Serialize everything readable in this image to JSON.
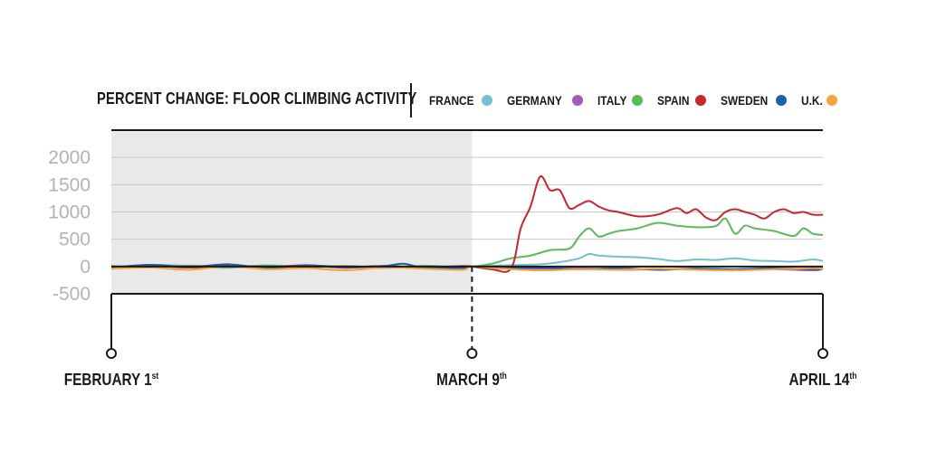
{
  "chart_data": {
    "type": "line",
    "title": "PERCENT CHANGE: FLOOR CLIMBING ACTIVITY",
    "ylim": [
      -500,
      2500
    ],
    "yticks": [
      2000,
      1500,
      1000,
      500,
      0,
      -500
    ],
    "x_range_days": [
      0,
      73
    ],
    "x_labels": [
      {
        "day": 0,
        "main": "FEBRUARY 1",
        "sup": "st"
      },
      {
        "day": 37,
        "main": "MARCH 9",
        "sup": "th"
      },
      {
        "day": 73,
        "main": "APRIL 14",
        "sup": "th"
      }
    ],
    "shaded_until_day": 37,
    "grid": true,
    "legend_position": "top",
    "series": [
      {
        "name": "FRANCE",
        "color": "#74bfd0",
        "x": [
          0,
          4,
          8,
          12,
          16,
          20,
          24,
          28,
          32,
          36,
          37,
          40,
          44,
          46,
          48,
          49,
          50,
          52,
          54,
          56,
          58,
          60,
          62,
          64,
          66,
          68,
          70,
          72,
          73
        ],
        "y": [
          -20,
          30,
          10,
          -25,
          20,
          -10,
          5,
          -30,
          15,
          -20,
          0,
          20,
          40,
          80,
          150,
          230,
          200,
          180,
          170,
          140,
          100,
          130,
          120,
          150,
          110,
          100,
          90,
          130,
          100
        ]
      },
      {
        "name": "GERMANY",
        "color": "#a35ab8",
        "x": [
          0,
          4,
          8,
          12,
          16,
          20,
          24,
          28,
          32,
          36,
          37,
          40,
          44,
          48,
          52,
          56,
          60,
          64,
          68,
          72,
          73
        ],
        "y": [
          -30,
          10,
          -20,
          20,
          -10,
          15,
          -25,
          5,
          -15,
          10,
          0,
          -20,
          -40,
          -30,
          -60,
          -50,
          -40,
          -60,
          -50,
          -70,
          -40
        ]
      },
      {
        "name": "ITALY",
        "color": "#5cba5c",
        "x": [
          0,
          4,
          8,
          12,
          16,
          20,
          24,
          28,
          32,
          36,
          37,
          39,
          41,
          43,
          45,
          47,
          48,
          49,
          50,
          51,
          52,
          54,
          56,
          58,
          60,
          62,
          63,
          64,
          65,
          66,
          68,
          70,
          71,
          72,
          73
        ],
        "y": [
          10,
          -20,
          15,
          -10,
          20,
          -15,
          10,
          -20,
          5,
          -10,
          0,
          50,
          150,
          200,
          300,
          330,
          550,
          700,
          550,
          600,
          650,
          700,
          800,
          750,
          720,
          740,
          880,
          600,
          750,
          700,
          650,
          560,
          700,
          600,
          580
        ]
      },
      {
        "name": "SPAIN",
        "color": "#c6262e",
        "x": [
          0,
          4,
          8,
          12,
          16,
          20,
          24,
          28,
          32,
          36,
          37,
          39,
          41,
          42,
          43,
          44,
          45,
          46,
          47,
          48,
          49,
          50,
          51,
          52,
          54,
          56,
          58,
          59,
          60,
          61,
          62,
          63,
          64,
          65,
          66,
          67,
          68,
          69,
          70,
          71,
          72,
          73
        ],
        "y": [
          -10,
          20,
          -20,
          15,
          -10,
          25,
          -15,
          10,
          -20,
          5,
          0,
          -50,
          -40,
          700,
          1100,
          1650,
          1400,
          1400,
          1070,
          1130,
          1200,
          1100,
          1030,
          1000,
          920,
          950,
          1070,
          980,
          1050,
          900,
          850,
          1000,
          1050,
          1000,
          950,
          880,
          1000,
          1050,
          980,
          1000,
          950,
          950
        ]
      },
      {
        "name": "SWEDEN",
        "color": "#1f5fa8",
        "x": [
          0,
          4,
          8,
          12,
          16,
          20,
          24,
          28,
          30,
          32,
          36,
          37,
          40,
          44,
          48,
          52,
          56,
          60,
          64,
          68,
          72,
          73
        ],
        "y": [
          -20,
          30,
          -10,
          40,
          -30,
          20,
          -10,
          10,
          50,
          -20,
          -30,
          0,
          -40,
          -20,
          -50,
          -30,
          -60,
          -40,
          -50,
          -30,
          -50,
          -40
        ]
      },
      {
        "name": "U.K.",
        "color": "#f5a33a",
        "x": [
          0,
          4,
          8,
          12,
          16,
          20,
          24,
          28,
          32,
          36,
          37,
          40,
          44,
          48,
          52,
          56,
          60,
          64,
          68,
          72,
          73
        ],
        "y": [
          -40,
          -20,
          -60,
          0,
          -50,
          -30,
          -70,
          -20,
          -40,
          -60,
          0,
          -40,
          -70,
          -50,
          -60,
          -40,
          -60,
          -70,
          -50,
          -30,
          -40
        ]
      }
    ]
  }
}
